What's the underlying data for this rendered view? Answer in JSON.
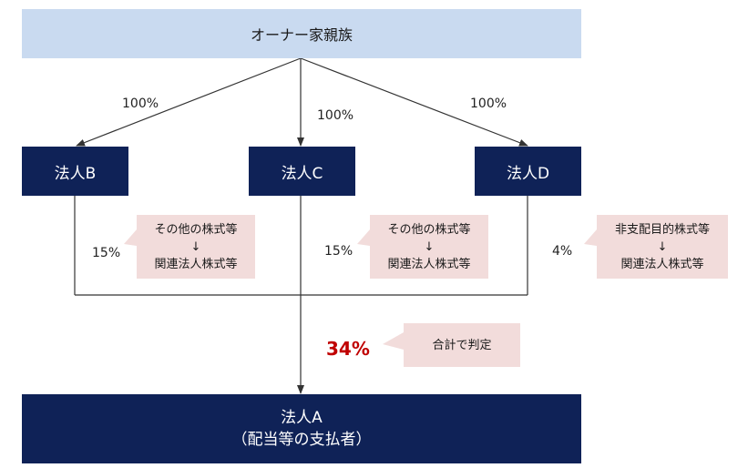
{
  "owner": {
    "label": "オーナー家親族"
  },
  "corporations": {
    "b": {
      "label": "法人B"
    },
    "c": {
      "label": "法人C"
    },
    "d": {
      "label": "法人D"
    }
  },
  "corp_a": {
    "line1": "法人A",
    "line2": "（配当等の支払者）"
  },
  "ownership": {
    "owner_to_b": "100%",
    "owner_to_c": "100%",
    "owner_to_d": "100%",
    "b_to_a": "15%",
    "c_to_a": "15%",
    "d_to_a": "4%"
  },
  "callouts": {
    "b": {
      "from": "その他の株式等",
      "arrow": "↓",
      "to": "関連法人株式等"
    },
    "c": {
      "from": "その他の株式等",
      "arrow": "↓",
      "to": "関連法人株式等"
    },
    "d": {
      "from": "非支配目的株式等",
      "arrow": "↓",
      "to": "関連法人株式等"
    },
    "total": {
      "label": "合計で判定"
    }
  },
  "total_pct": "34%",
  "colors": {
    "owner_fill": "#c9daf0",
    "corp_fill": "#0f2257",
    "callout_fill": "#f2dcdb",
    "highlight_text": "#c00000",
    "line": "#333333"
  }
}
